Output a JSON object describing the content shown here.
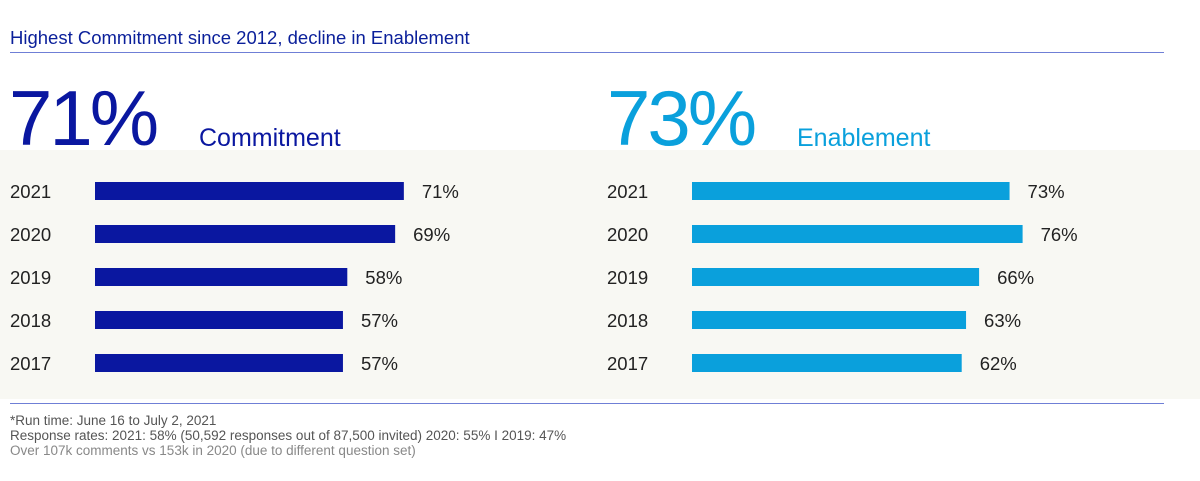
{
  "title": "Highest Commitment since 2012, decline in Enablement",
  "panels": [
    {
      "big_value": "71%",
      "label": "Commitment",
      "color": "#0a17a0"
    },
    {
      "big_value": "73%",
      "label": "Enablement",
      "color": "#0aa0dc"
    }
  ],
  "chart_data": [
    {
      "type": "bar",
      "orientation": "horizontal",
      "title": "Commitment",
      "categories": [
        "2021",
        "2020",
        "2019",
        "2018",
        "2017"
      ],
      "values": [
        71,
        69,
        58,
        57,
        57
      ],
      "value_labels": [
        "71%",
        "69%",
        "58%",
        "57%",
        "57%"
      ],
      "unit": "%"
    },
    {
      "type": "bar",
      "orientation": "horizontal",
      "title": "Enablement",
      "categories": [
        "2021",
        "2020",
        "2019",
        "2018",
        "2017"
      ],
      "values": [
        73,
        76,
        66,
        63,
        62
      ],
      "value_labels": [
        "73%",
        "76%",
        "66%",
        "63%",
        "62%"
      ],
      "unit": "%"
    }
  ],
  "footnotes": [
    "*Run time: June 16 to July 2, 2021",
    "Response rates: 2021: 58% (50,592 responses out of 87,500 invited) 2020: 55% I 2019: 47%",
    "Over 107k comments vs 153k in 2020 (due to different question set)"
  ]
}
